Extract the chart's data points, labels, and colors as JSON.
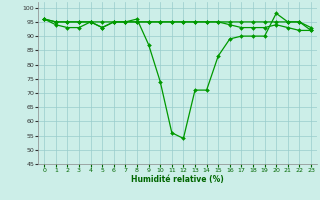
{
  "xlabel": "Humidité relative (%)",
  "bg_color": "#cceee8",
  "grid_color": "#99cccc",
  "line_color": "#009900",
  "ylim": [
    45,
    102
  ],
  "xlim": [
    -0.5,
    23.5
  ],
  "yticks": [
    45,
    50,
    55,
    60,
    65,
    70,
    75,
    80,
    85,
    90,
    95,
    100
  ],
  "xticks": [
    0,
    1,
    2,
    3,
    4,
    5,
    6,
    7,
    8,
    9,
    10,
    11,
    12,
    13,
    14,
    15,
    16,
    17,
    18,
    19,
    20,
    21,
    22,
    23
  ],
  "series_main": [
    96,
    94,
    93,
    93,
    95,
    93,
    95,
    95,
    96,
    87,
    74,
    56,
    54,
    71,
    71,
    83,
    89,
    90,
    90,
    90,
    98,
    95,
    95,
    92
  ],
  "series_upper": [
    96,
    95,
    95,
    95,
    95,
    95,
    95,
    95,
    95,
    95,
    95,
    95,
    95,
    95,
    95,
    95,
    95,
    95,
    95,
    95,
    95,
    95,
    95,
    93
  ],
  "series_mid": [
    96,
    95,
    95,
    95,
    95,
    93,
    95,
    95,
    95,
    95,
    95,
    95,
    95,
    95,
    95,
    95,
    94,
    93,
    93,
    93,
    94,
    93,
    92,
    92
  ]
}
